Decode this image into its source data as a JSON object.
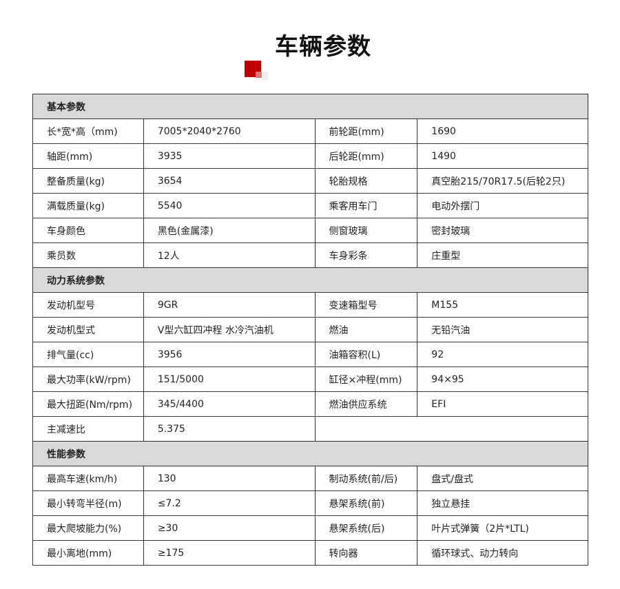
{
  "title": "车辆参数",
  "accent": "#c00000",
  "sections": [
    {
      "name": "基本参数",
      "rows": [
        [
          "长*宽*高（mm)",
          "7005*2040*2760",
          "前轮距(mm)",
          "1690"
        ],
        [
          "轴距(mm)",
          "3935",
          "后轮距(mm)",
          "1490"
        ],
        [
          "整备质量(kg)",
          "3654",
          "轮胎规格",
          "真空胎215/70R17.5(后轮2只)"
        ],
        [
          "满载质量(kg)",
          "5540",
          "乘客用车门",
          "电动外摆门"
        ],
        [
          "车身颜色",
          "黑色(金属漆)",
          "侧窗玻璃",
          "密封玻璃"
        ],
        [
          "乘员数",
          "12人",
          "车身彩条",
          "庄重型"
        ]
      ]
    },
    {
      "name": "动力系统参数",
      "rows": [
        [
          "发动机型号",
          "9GR",
          "变速箱型号",
          "M155"
        ],
        [
          "发动机型式",
          "V型六缸四冲程 水冷汽油机",
          "燃油",
          "无铅汽油"
        ],
        [
          "排气量(cc)",
          "3956",
          "油箱容积(L)",
          "92"
        ],
        [
          "最大功率(kW/rpm)",
          "151/5000",
          "缸径×冲程(mm)",
          "94×95"
        ],
        [
          "最大扭距(Nm/rpm)",
          "345/4400",
          "燃油供应系统",
          "EFI"
        ],
        [
          "主减速比",
          "5.375",
          "",
          ""
        ]
      ]
    },
    {
      "name": "性能参数",
      "rows": [
        [
          "最高车速(km/h)",
          "130",
          "制动系统(前/后)",
          "盘式/盘式"
        ],
        [
          "最小转弯半径(m)",
          "≤7.2",
          "悬架系统(前)",
          "独立悬挂"
        ],
        [
          "最大爬坡能力(%)",
          "≥30",
          "悬架系统(后)",
          "叶片式弹簧（2片*LTL)"
        ],
        [
          "最小离地(mm)",
          "≥175",
          "转向器",
          "循环球式、动力转向"
        ]
      ]
    }
  ]
}
